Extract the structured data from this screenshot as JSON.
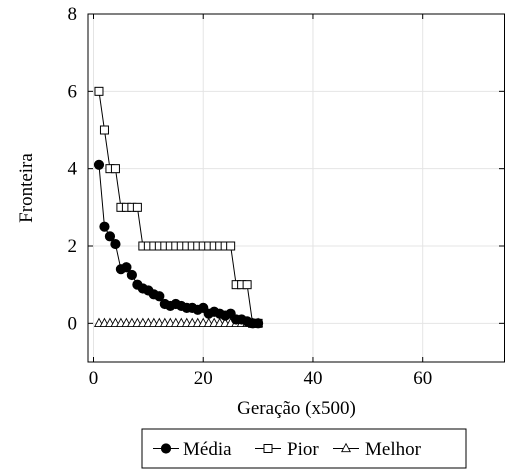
{
  "chart_data": {
    "type": "line",
    "xlabel": "Geração (x500)",
    "ylabel": "Fronteira",
    "xlim": [
      -1,
      75
    ],
    "ylim": [
      -1,
      8
    ],
    "xticks": [
      0,
      20,
      40,
      60
    ],
    "yticks": [
      0,
      2,
      4,
      6,
      8
    ],
    "grid": true,
    "legend_position": "bottom-center",
    "x": [
      1,
      2,
      3,
      4,
      5,
      6,
      7,
      8,
      9,
      10,
      11,
      12,
      13,
      14,
      15,
      16,
      17,
      18,
      19,
      20,
      21,
      22,
      23,
      24,
      25,
      26,
      27,
      28,
      29,
      30
    ],
    "series": [
      {
        "name": "Média",
        "marker": "filled-circle",
        "color": "#000000",
        "values": [
          4.1,
          2.5,
          2.25,
          2.05,
          1.4,
          1.45,
          1.25,
          1.0,
          0.9,
          0.85,
          0.75,
          0.7,
          0.5,
          0.45,
          0.5,
          0.45,
          0.4,
          0.4,
          0.35,
          0.4,
          0.25,
          0.3,
          0.25,
          0.2,
          0.25,
          0.1,
          0.1,
          0.05,
          0.0,
          0.0
        ]
      },
      {
        "name": "Pior",
        "marker": "open-square",
        "color": "#000000",
        "values": [
          6,
          5,
          4,
          4,
          3,
          3,
          3,
          3,
          2,
          2,
          2,
          2,
          2,
          2,
          2,
          2,
          2,
          2,
          2,
          2,
          2,
          2,
          2,
          2,
          2,
          1,
          1,
          1,
          0,
          0
        ]
      },
      {
        "name": "Melhor",
        "marker": "open-triangle",
        "color": "#000000",
        "values": [
          0,
          0,
          0,
          0,
          0,
          0,
          0,
          0,
          0,
          0,
          0,
          0,
          0,
          0,
          0,
          0,
          0,
          0,
          0,
          0,
          0,
          0,
          0,
          0,
          0,
          0,
          0,
          0,
          0,
          0
        ]
      }
    ]
  }
}
